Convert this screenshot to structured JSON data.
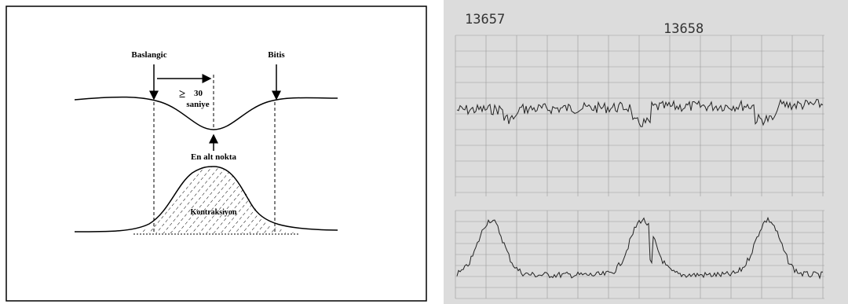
{
  "diagram": {
    "start_label": "Baslangic",
    "end_label": "Bitis",
    "duration_symbol": "≥",
    "duration_value": "30",
    "duration_unit": "saniye",
    "lowest_point_label": "En alt nokta",
    "contraction_label": "Kontraksiyon"
  },
  "printout": {
    "left_number": "13657",
    "right_number": "13658"
  }
}
